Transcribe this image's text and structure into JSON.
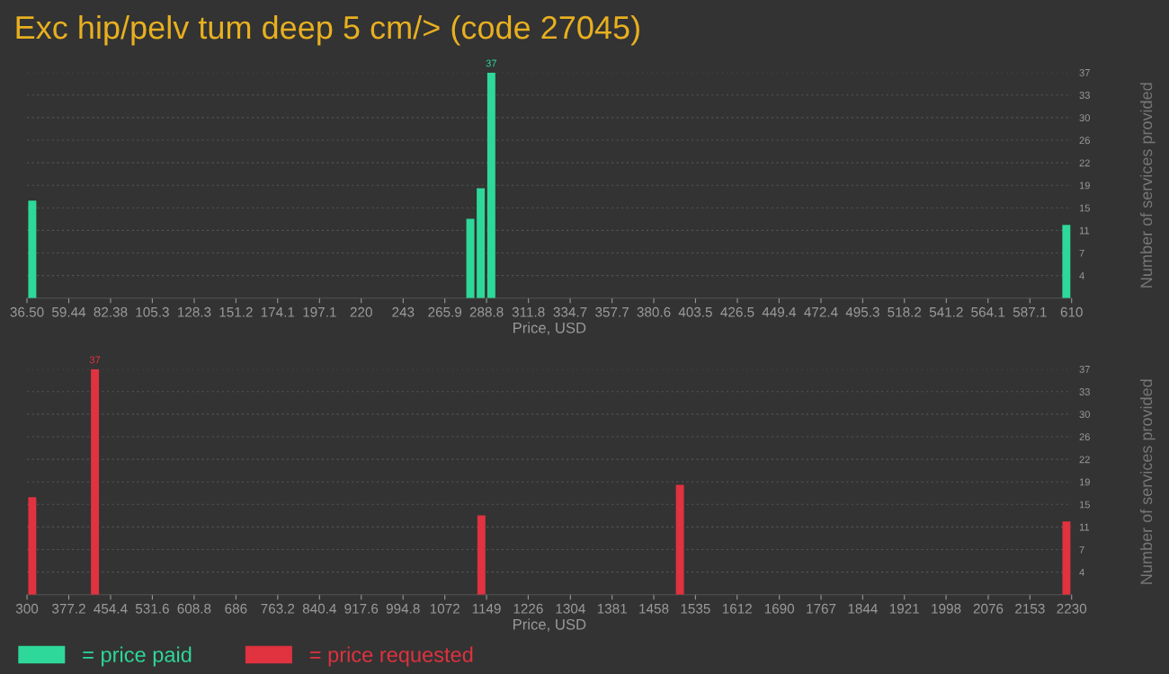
{
  "chart_data": [
    {
      "type": "bar",
      "title": "Exc hip/pelv tum deep 5 cm/> (code 27045)",
      "xlabel": "Price, USD",
      "ylabel": "Number of services provided",
      "x": [
        39.4,
        279.9,
        285.6,
        291.4,
        607.1
      ],
      "series": [
        {
          "name": "= price paid",
          "color": "#2ed89a",
          "values": [
            16,
            13,
            18,
            37,
            12
          ],
          "value_labels": [
            null,
            null,
            null,
            "37",
            null
          ]
        }
      ],
      "xlim": [
        36.5,
        610
      ],
      "xticks": [
        {
          "value": 36.5,
          "label": "36.50"
        },
        59.44,
        82.38,
        105.3,
        128.3,
        151.2,
        174.1,
        197.1,
        220,
        243,
        265.9,
        288.8,
        311.8,
        334.7,
        357.7,
        380.6,
        403.5,
        426.5,
        449.4,
        472.4,
        495.3,
        518.2,
        541.2,
        564.1,
        587.1,
        610
      ],
      "ylim": [
        0,
        37
      ],
      "yticks": [
        {
          "value": 3.7,
          "label": "4"
        },
        {
          "value": 7.4,
          "label": "7"
        },
        {
          "value": 11.1,
          "label": "11"
        },
        {
          "value": 14.8,
          "label": "15"
        },
        {
          "value": 18.5,
          "label": "19"
        },
        {
          "value": 22.2,
          "label": "22"
        },
        {
          "value": 25.9,
          "label": "26"
        },
        {
          "value": 29.6,
          "label": "30"
        },
        {
          "value": 33.3,
          "label": "33"
        },
        37
      ],
      "grid": "y"
    },
    {
      "type": "bar",
      "xlabel": "Price, USD",
      "ylabel": "Number of services provided",
      "x": [
        309.7,
        425.5,
        1139.5,
        1506.3,
        2220.4
      ],
      "series": [
        {
          "name": "= price requested",
          "color": "#e0323f",
          "values": [
            16,
            37,
            13,
            18,
            12
          ],
          "value_labels": [
            null,
            "37",
            null,
            null,
            null
          ]
        }
      ],
      "xlim": [
        300,
        2230
      ],
      "xticks": [
        300,
        377.2,
        454.4,
        531.6,
        608.8,
        686,
        763.2,
        840.4,
        917.6,
        994.8,
        1072,
        1149,
        1226,
        1304,
        1381,
        1458,
        1535,
        1612,
        1690,
        1767,
        1844,
        1921,
        1998,
        2076,
        2153,
        2230
      ],
      "ylim": [
        0,
        37
      ],
      "yticks": [
        {
          "value": 3.7,
          "label": "4"
        },
        {
          "value": 7.4,
          "label": "7"
        },
        {
          "value": 11.1,
          "label": "11"
        },
        {
          "value": 14.8,
          "label": "15"
        },
        {
          "value": 18.5,
          "label": "19"
        },
        {
          "value": 22.2,
          "label": "22"
        },
        {
          "value": 25.9,
          "label": "26"
        },
        {
          "value": 29.6,
          "label": "30"
        },
        {
          "value": 33.3,
          "label": "33"
        },
        37
      ],
      "grid": "y",
      "legend": "bottom left"
    }
  ]
}
